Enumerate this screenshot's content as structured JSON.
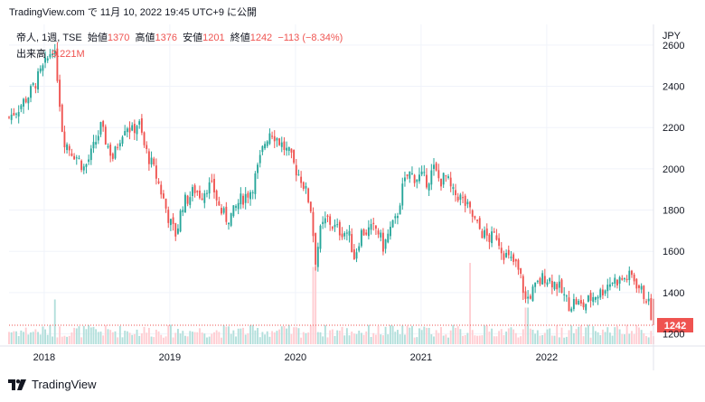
{
  "caption": "TradingView.com で 11月 10, 2022 19:45 UTC+9 に公開",
  "legend": {
    "symbol": "帝人, 1週, TSE",
    "open_label": "始値",
    "open": "1370",
    "high_label": "高値",
    "high": "1376",
    "low_label": "安値",
    "low": "1201",
    "close_label": "終値",
    "close": "1242",
    "change": "−113 (−8.34%)"
  },
  "volume": {
    "label": "出来高",
    "value": "9.221M"
  },
  "currency": "JPY",
  "last_price_label": "1242",
  "brand": "TradingView",
  "colors": {
    "up": "#26a69a",
    "down": "#ef5350",
    "up_volume": "#b2dfdb",
    "down_volume": "#ffcdd2"
  },
  "chart_data": {
    "type": "candlestick",
    "x_range": [
      2017.72,
      2022.85
    ],
    "ylim": [
      1150,
      2700
    ],
    "y_ticks": [
      1200,
      1400,
      1600,
      1800,
      2000,
      2200,
      2400,
      2600
    ],
    "x_ticks": [
      {
        "label": "2018",
        "x": 2018.0
      },
      {
        "label": "2019",
        "x": 2019.0
      },
      {
        "label": "2020",
        "x": 2020.0
      },
      {
        "label": "2021",
        "x": 2021.0
      },
      {
        "label": "2022",
        "x": 2022.0
      }
    ],
    "close_path": [
      [
        2017.72,
        2250
      ],
      [
        2017.8,
        2300
      ],
      [
        2017.88,
        2360
      ],
      [
        2017.95,
        2440
      ],
      [
        2018.02,
        2520
      ],
      [
        2018.07,
        2600
      ],
      [
        2018.1,
        2480
      ],
      [
        2018.15,
        2150
      ],
      [
        2018.2,
        2100
      ],
      [
        2018.27,
        2050
      ],
      [
        2018.32,
        2000
      ],
      [
        2018.38,
        2080
      ],
      [
        2018.45,
        2200
      ],
      [
        2018.5,
        2120
      ],
      [
        2018.55,
        2050
      ],
      [
        2018.6,
        2150
      ],
      [
        2018.65,
        2220
      ],
      [
        2018.7,
        2180
      ],
      [
        2018.75,
        2230
      ],
      [
        2018.8,
        2100
      ],
      [
        2018.85,
        2030
      ],
      [
        2018.9,
        1950
      ],
      [
        2018.95,
        1850
      ],
      [
        2019.0,
        1740
      ],
      [
        2019.05,
        1680
      ],
      [
        2019.1,
        1830
      ],
      [
        2019.15,
        1860
      ],
      [
        2019.2,
        1900
      ],
      [
        2019.25,
        1870
      ],
      [
        2019.3,
        1920
      ],
      [
        2019.35,
        1900
      ],
      [
        2019.4,
        1800
      ],
      [
        2019.45,
        1760
      ],
      [
        2019.5,
        1780
      ],
      [
        2019.55,
        1840
      ],
      [
        2019.6,
        1870
      ],
      [
        2019.65,
        1900
      ],
      [
        2019.7,
        2000
      ],
      [
        2019.75,
        2120
      ],
      [
        2019.8,
        2190
      ],
      [
        2019.85,
        2150
      ],
      [
        2019.9,
        2110
      ],
      [
        2019.95,
        2070
      ],
      [
        2020.0,
        2000
      ],
      [
        2020.05,
        1950
      ],
      [
        2020.12,
        1820
      ],
      [
        2020.16,
        1560
      ],
      [
        2020.2,
        1700
      ],
      [
        2020.25,
        1760
      ],
      [
        2020.3,
        1720
      ],
      [
        2020.35,
        1700
      ],
      [
        2020.42,
        1690
      ],
      [
        2020.47,
        1570
      ],
      [
        2020.52,
        1690
      ],
      [
        2020.58,
        1700
      ],
      [
        2020.65,
        1710
      ],
      [
        2020.7,
        1620
      ],
      [
        2020.75,
        1700
      ],
      [
        2020.8,
        1750
      ],
      [
        2020.85,
        1900
      ],
      [
        2020.9,
        1980
      ],
      [
        2020.95,
        1960
      ],
      [
        2021.0,
        1960
      ],
      [
        2021.05,
        1940
      ],
      [
        2021.1,
        2000
      ],
      [
        2021.15,
        1940
      ],
      [
        2021.2,
        1960
      ],
      [
        2021.25,
        1880
      ],
      [
        2021.3,
        1870
      ],
      [
        2021.35,
        1830
      ],
      [
        2021.4,
        1780
      ],
      [
        2021.45,
        1720
      ],
      [
        2021.5,
        1680
      ],
      [
        2021.55,
        1660
      ],
      [
        2021.6,
        1680
      ],
      [
        2021.65,
        1600
      ],
      [
        2021.7,
        1560
      ],
      [
        2021.75,
        1540
      ],
      [
        2021.8,
        1460
      ],
      [
        2021.83,
        1360
      ],
      [
        2021.88,
        1400
      ],
      [
        2021.93,
        1440
      ],
      [
        2021.98,
        1480
      ],
      [
        2022.03,
        1460
      ],
      [
        2022.08,
        1440
      ],
      [
        2022.13,
        1390
      ],
      [
        2022.18,
        1340
      ],
      [
        2022.23,
        1360
      ],
      [
        2022.28,
        1330
      ],
      [
        2022.33,
        1360
      ],
      [
        2022.38,
        1390
      ],
      [
        2022.43,
        1400
      ],
      [
        2022.48,
        1440
      ],
      [
        2022.53,
        1460
      ],
      [
        2022.58,
        1460
      ],
      [
        2022.63,
        1470
      ],
      [
        2022.68,
        1480
      ],
      [
        2022.72,
        1440
      ],
      [
        2022.76,
        1400
      ],
      [
        2022.8,
        1370
      ],
      [
        2022.85,
        1242
      ]
    ],
    "volume_spikes": [
      {
        "x": 2018.08,
        "level": 0.55
      },
      {
        "x": 2020.15,
        "level": 0.95
      },
      {
        "x": 2021.39,
        "level": 1.0
      },
      {
        "x": 2021.84,
        "level": 0.45
      }
    ]
  }
}
